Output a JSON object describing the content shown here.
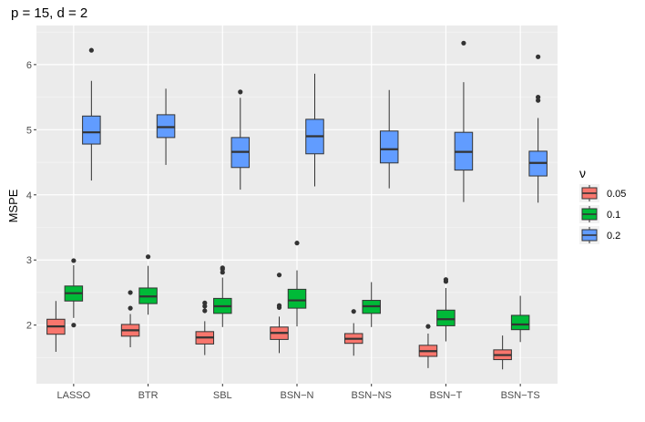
{
  "chart_data": {
    "type": "boxplot",
    "title": "p = 15, d = 2",
    "xlabel": "",
    "ylabel": "MSPE",
    "ylim": [
      1.1,
      6.6
    ],
    "yticks": [
      2,
      3,
      4,
      5,
      6
    ],
    "categories": [
      "LASSO",
      "BTR",
      "SBL",
      "BSN−N",
      "BSN−NS",
      "BSN−T",
      "BSN−TS"
    ],
    "legend": {
      "title": "ν",
      "position": "right",
      "entries": [
        {
          "label": "0.05",
          "color": "#F8766D"
        },
        {
          "label": "0.1",
          "color": "#00BA38"
        },
        {
          "label": "0.2",
          "color": "#619CFF"
        }
      ]
    },
    "series": [
      {
        "name": "0.05",
        "color": "#F8766D",
        "boxes": [
          {
            "min": 1.59,
            "q1": 1.86,
            "median": 1.98,
            "q3": 2.09,
            "max": 2.37,
            "outliers": []
          },
          {
            "min": 1.66,
            "q1": 1.83,
            "median": 1.92,
            "q3": 2.01,
            "max": 2.17,
            "outliers": [
              2.26,
              2.5
            ]
          },
          {
            "min": 1.54,
            "q1": 1.71,
            "median": 1.81,
            "q3": 1.9,
            "max": 2.06,
            "outliers": [
              2.22,
              2.29,
              2.34
            ]
          },
          {
            "min": 1.57,
            "q1": 1.78,
            "median": 1.88,
            "q3": 1.97,
            "max": 2.13,
            "outliers": [
              2.27,
              2.3,
              2.77
            ]
          },
          {
            "min": 1.53,
            "q1": 1.72,
            "median": 1.79,
            "q3": 1.87,
            "max": 2.03,
            "outliers": [
              2.21
            ]
          },
          {
            "min": 1.34,
            "q1": 1.52,
            "median": 1.6,
            "q3": 1.69,
            "max": 1.87,
            "outliers": [
              1.98
            ]
          },
          {
            "min": 1.32,
            "q1": 1.47,
            "median": 1.54,
            "q3": 1.62,
            "max": 1.84,
            "outliers": []
          }
        ]
      },
      {
        "name": "0.1",
        "color": "#00BA38",
        "boxes": [
          {
            "min": 2.11,
            "q1": 2.37,
            "median": 2.49,
            "q3": 2.6,
            "max": 2.92,
            "outliers": [
              2.0,
              2.99
            ]
          },
          {
            "min": 2.16,
            "q1": 2.33,
            "median": 2.44,
            "q3": 2.57,
            "max": 2.91,
            "outliers": [
              3.05
            ]
          },
          {
            "min": 1.97,
            "q1": 2.18,
            "median": 2.29,
            "q3": 2.41,
            "max": 2.73,
            "outliers": [
              2.81,
              2.86,
              2.88
            ]
          },
          {
            "min": 1.98,
            "q1": 2.26,
            "median": 2.38,
            "q3": 2.55,
            "max": 2.84,
            "outliers": [
              3.26
            ]
          },
          {
            "min": 1.97,
            "q1": 2.18,
            "median": 2.29,
            "q3": 2.38,
            "max": 2.66,
            "outliers": []
          },
          {
            "min": 1.75,
            "q1": 1.99,
            "median": 2.09,
            "q3": 2.23,
            "max": 2.57,
            "outliers": [
              2.67,
              2.7
            ]
          },
          {
            "min": 1.74,
            "q1": 1.93,
            "median": 2.01,
            "q3": 2.15,
            "max": 2.45,
            "outliers": []
          }
        ]
      },
      {
        "name": "0.2",
        "color": "#619CFF",
        "boxes": [
          {
            "min": 4.22,
            "q1": 4.78,
            "median": 4.96,
            "q3": 5.21,
            "max": 5.75,
            "outliers": [
              6.22
            ]
          },
          {
            "min": 4.46,
            "q1": 4.88,
            "median": 5.04,
            "q3": 5.23,
            "max": 5.63,
            "outliers": []
          },
          {
            "min": 4.08,
            "q1": 4.42,
            "median": 4.66,
            "q3": 4.88,
            "max": 5.49,
            "outliers": [
              5.58
            ]
          },
          {
            "min": 4.13,
            "q1": 4.63,
            "median": 4.9,
            "q3": 5.16,
            "max": 5.86,
            "outliers": []
          },
          {
            "min": 4.1,
            "q1": 4.49,
            "median": 4.7,
            "q3": 4.98,
            "max": 5.61,
            "outliers": []
          },
          {
            "min": 3.89,
            "q1": 4.38,
            "median": 4.66,
            "q3": 4.96,
            "max": 5.73,
            "outliers": [
              6.33
            ]
          },
          {
            "min": 3.88,
            "q1": 4.29,
            "median": 4.49,
            "q3": 4.67,
            "max": 5.18,
            "outliers": [
              5.45,
              5.5,
              6.12
            ]
          }
        ]
      }
    ]
  }
}
